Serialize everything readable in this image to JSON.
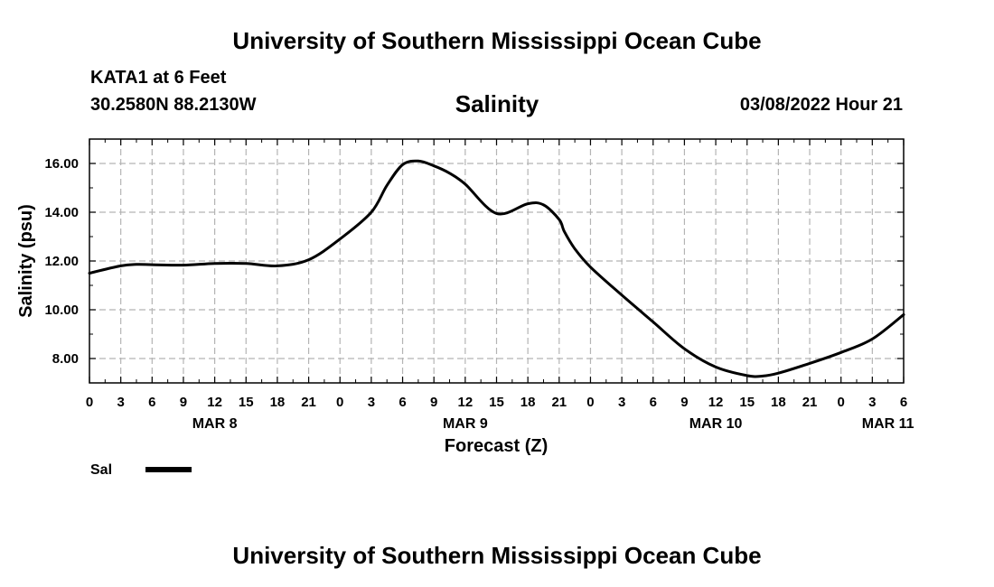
{
  "header": {
    "title": "University of Southern Mississippi Ocean Cube",
    "station": "KATA1 at 6 Feet",
    "coords": "30.2580N  88.2130W",
    "variable": "Salinity",
    "datetime": "03/08/2022 Hour 21"
  },
  "footer": {
    "title": "University of Southern Mississippi Ocean Cube"
  },
  "chart_data": {
    "type": "line",
    "title": "Salinity",
    "xlabel": "Forecast (Z)",
    "ylabel": "Salinity (psu)",
    "xlim": [
      0,
      78
    ],
    "ylim": [
      7,
      17
    ],
    "yticks": [
      "8.00",
      "10.00",
      "12.00",
      "14.00",
      "16.00"
    ],
    "ytick_values": [
      8,
      10,
      12,
      14,
      16
    ],
    "xtick_labels": [
      "0",
      "3",
      "6",
      "9",
      "12",
      "15",
      "18",
      "21",
      "0",
      "3",
      "6",
      "9",
      "12",
      "15",
      "18",
      "21",
      "0",
      "3",
      "6",
      "9",
      "12",
      "15",
      "18",
      "21",
      "0",
      "3",
      "6"
    ],
    "day_labels": [
      {
        "label": "MAR 8",
        "x": 12
      },
      {
        "label": "MAR 9",
        "x": 36
      },
      {
        "label": "MAR 10",
        "x": 60
      },
      {
        "label": "MAR 11",
        "x": 76.5
      }
    ],
    "grid": true,
    "series": [
      {
        "name": "Sal",
        "color": "#000000",
        "x": [
          0,
          3,
          4.5,
          6,
          9,
          12,
          15,
          18,
          21,
          24,
          27,
          28.5,
          30,
          31.5,
          33,
          34.5,
          36,
          39,
          42,
          43.5,
          45,
          45.5,
          46.5,
          48,
          51,
          54,
          57,
          60,
          63,
          64.5,
          66,
          69,
          72,
          75,
          78
        ],
        "y": [
          11.5,
          11.8,
          11.86,
          11.85,
          11.83,
          11.9,
          11.9,
          11.8,
          12.05,
          12.9,
          14.0,
          15.1,
          15.95,
          16.1,
          15.9,
          15.6,
          15.15,
          13.95,
          14.35,
          14.3,
          13.7,
          13.2,
          12.5,
          11.75,
          10.6,
          9.5,
          8.4,
          7.65,
          7.3,
          7.28,
          7.4,
          7.8,
          8.25,
          8.8,
          9.8
        ]
      }
    ],
    "legend": {
      "label": "Sal",
      "position": "bottom-left"
    }
  }
}
